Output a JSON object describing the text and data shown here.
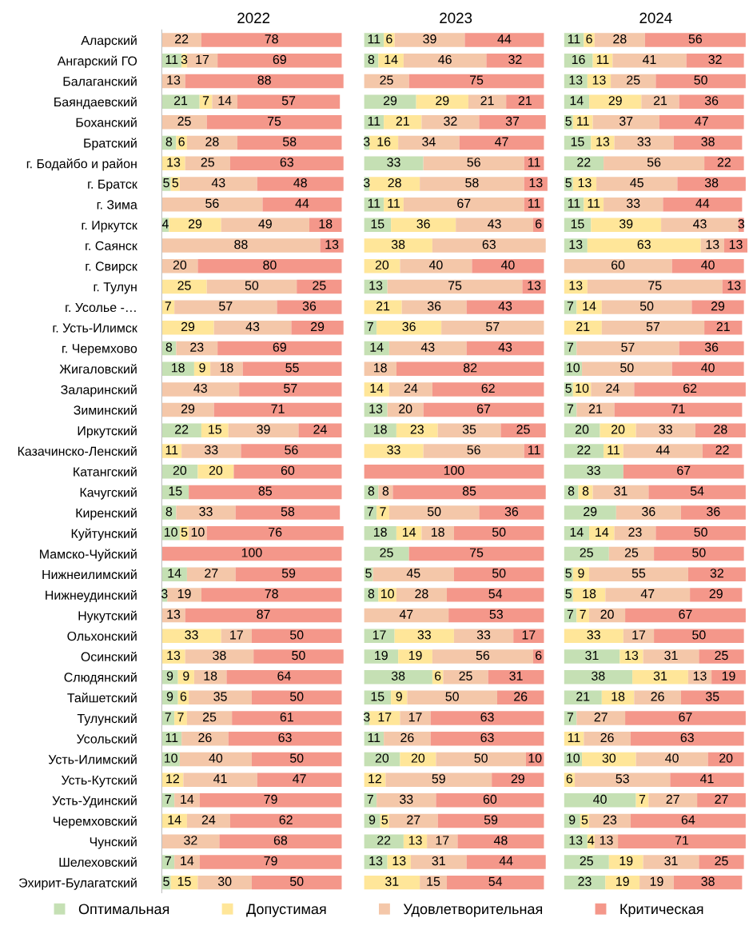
{
  "chart_data": [
    {
      "type": "bar",
      "orientation": "horizontal",
      "stacked": true,
      "title": "2022",
      "data_labels": true,
      "legend": "bottom",
      "tick_labels": "y",
      "xlim": [
        0,
        102
      ],
      "categories": [
        "Аларский",
        "Ангарский ГО",
        "Балаганский",
        "Баяндаевский",
        "Боханский",
        "Братский",
        "г. Бодайбо и район",
        "г. Братск",
        "г. Зима",
        "г. Иркутск",
        "г. Саянск",
        "г. Свирск",
        "г. Тулун",
        "г. Усолье -…",
        "г. Усть-Илимск",
        "г. Черемхово",
        "Жигаловский",
        "Заларинский",
        "Зиминский",
        "Иркутский",
        "Казачинско-Ленский",
        "Катангский",
        "Качугский",
        "Киренский",
        "Куйтунский",
        "Мамско-Чуйский",
        "Нижнеилимский",
        "Нижнеудинский",
        "Нукутский",
        "Ольхонский",
        "Осинский",
        "Слюдянский",
        "Тайшетский",
        "Тулунский",
        "Усольский",
        "Усть-Илимский",
        "Усть-Кутский",
        "Усть-Удинский",
        "Черемховский",
        "Чунский",
        "Шелеховский",
        "Эхирит-Булагатский"
      ],
      "series": [
        {
          "name": "Оптимальная",
          "color": "#c5e0b4",
          "values": [
            null,
            11,
            null,
            21,
            null,
            8,
            null,
            5,
            null,
            4,
            null,
            null,
            null,
            null,
            null,
            8,
            18,
            null,
            null,
            22,
            null,
            20,
            15,
            8,
            10,
            null,
            14,
            3,
            null,
            null,
            null,
            9,
            9,
            7,
            11,
            10,
            null,
            7,
            null,
            null,
            7,
            5
          ]
        },
        {
          "name": "Допустимая",
          "color": "#ffe699",
          "values": [
            null,
            3,
            null,
            7,
            null,
            6,
            13,
            5,
            null,
            29,
            null,
            null,
            25,
            7,
            29,
            null,
            9,
            null,
            null,
            15,
            11,
            20,
            null,
            null,
            5,
            null,
            null,
            null,
            null,
            33,
            13,
            9,
            6,
            7,
            null,
            null,
            12,
            null,
            14,
            null,
            null,
            15
          ]
        },
        {
          "name": "Удовлетворительная",
          "color": "#f4c7a9",
          "values": [
            22,
            17,
            13,
            14,
            25,
            28,
            25,
            43,
            56,
            49,
            88,
            20,
            50,
            57,
            43,
            23,
            18,
            43,
            29,
            39,
            33,
            null,
            null,
            33,
            10,
            null,
            27,
            19,
            13,
            17,
            38,
            18,
            35,
            25,
            26,
            40,
            41,
            14,
            24,
            32,
            14,
            30
          ]
        },
        {
          "name": "Критическая",
          "color": "#f4978a",
          "values": [
            78,
            69,
            88,
            57,
            75,
            58,
            63,
            48,
            44,
            18,
            13,
            80,
            25,
            36,
            29,
            69,
            55,
            57,
            71,
            24,
            56,
            60,
            85,
            58,
            76,
            100,
            59,
            78,
            87,
            50,
            50,
            64,
            50,
            61,
            63,
            50,
            47,
            79,
            62,
            68,
            79,
            50
          ]
        }
      ]
    },
    {
      "type": "bar",
      "orientation": "horizontal",
      "stacked": true,
      "title": "2023",
      "data_labels": true,
      "tick_labels": false,
      "xlim": [
        0,
        102
      ],
      "series": [
        {
          "color": "#c5e0b4",
          "values": [
            11,
            8,
            null,
            29,
            11,
            3,
            33,
            3,
            11,
            15,
            null,
            null,
            13,
            null,
            7,
            14,
            null,
            null,
            13,
            18,
            null,
            null,
            8,
            7,
            18,
            25,
            5,
            8,
            null,
            17,
            19,
            38,
            15,
            3,
            11,
            20,
            null,
            7,
            9,
            22,
            13,
            null
          ]
        },
        {
          "color": "#ffe699",
          "values": [
            6,
            14,
            null,
            29,
            21,
            16,
            null,
            28,
            11,
            36,
            38,
            20,
            null,
            21,
            36,
            null,
            null,
            14,
            null,
            23,
            33,
            null,
            null,
            7,
            14,
            null,
            null,
            10,
            null,
            33,
            19,
            6,
            9,
            17,
            null,
            20,
            12,
            null,
            5,
            13,
            13,
            31
          ]
        },
        {
          "color": "#f4c7a9",
          "values": [
            39,
            46,
            25,
            21,
            32,
            34,
            56,
            58,
            67,
            43,
            63,
            40,
            75,
            36,
            57,
            43,
            18,
            24,
            20,
            35,
            56,
            null,
            8,
            50,
            18,
            null,
            45,
            28,
            47,
            33,
            56,
            25,
            50,
            17,
            26,
            50,
            59,
            33,
            27,
            17,
            31,
            15
          ]
        },
        {
          "color": "#f4978a",
          "values": [
            44,
            32,
            75,
            21,
            37,
            47,
            11,
            13,
            11,
            6,
            null,
            40,
            13,
            43,
            null,
            43,
            82,
            62,
            67,
            25,
            11,
            100,
            85,
            36,
            50,
            75,
            50,
            54,
            53,
            17,
            6,
            31,
            26,
            63,
            63,
            10,
            29,
            60,
            59,
            48,
            44,
            54
          ]
        }
      ]
    },
    {
      "type": "bar",
      "orientation": "horizontal",
      "stacked": true,
      "title": "2024",
      "data_labels": true,
      "tick_labels": false,
      "xlim": [
        0,
        102
      ],
      "series": [
        {
          "color": "#c5e0b4",
          "values": [
            11,
            16,
            13,
            14,
            5,
            15,
            22,
            5,
            11,
            15,
            13,
            null,
            null,
            7,
            null,
            7,
            10,
            5,
            7,
            20,
            22,
            33,
            8,
            29,
            14,
            25,
            5,
            5,
            7,
            null,
            31,
            38,
            21,
            7,
            null,
            10,
            null,
            40,
            9,
            13,
            25,
            23
          ]
        },
        {
          "color": "#ffe699",
          "values": [
            6,
            11,
            13,
            29,
            11,
            13,
            null,
            13,
            11,
            39,
            63,
            null,
            13,
            14,
            21,
            null,
            null,
            10,
            null,
            20,
            11,
            null,
            8,
            null,
            14,
            null,
            9,
            18,
            7,
            33,
            13,
            31,
            18,
            null,
            11,
            30,
            6,
            7,
            5,
            4,
            19,
            19
          ]
        },
        {
          "color": "#f4c7a9",
          "values": [
            28,
            41,
            25,
            21,
            37,
            33,
            56,
            45,
            33,
            43,
            13,
            60,
            75,
            50,
            57,
            57,
            50,
            24,
            21,
            33,
            44,
            null,
            31,
            36,
            23,
            25,
            55,
            47,
            20,
            17,
            31,
            13,
            26,
            27,
            26,
            40,
            53,
            27,
            23,
            13,
            31,
            19
          ]
        },
        {
          "color": "#f4978a",
          "values": [
            56,
            32,
            50,
            36,
            47,
            38,
            22,
            38,
            44,
            3,
            13,
            40,
            13,
            29,
            21,
            36,
            40,
            62,
            71,
            28,
            22,
            67,
            54,
            36,
            50,
            50,
            32,
            29,
            67,
            50,
            25,
            19,
            35,
            67,
            63,
            20,
            41,
            27,
            64,
            71,
            25,
            38
          ]
        }
      ]
    }
  ]
}
